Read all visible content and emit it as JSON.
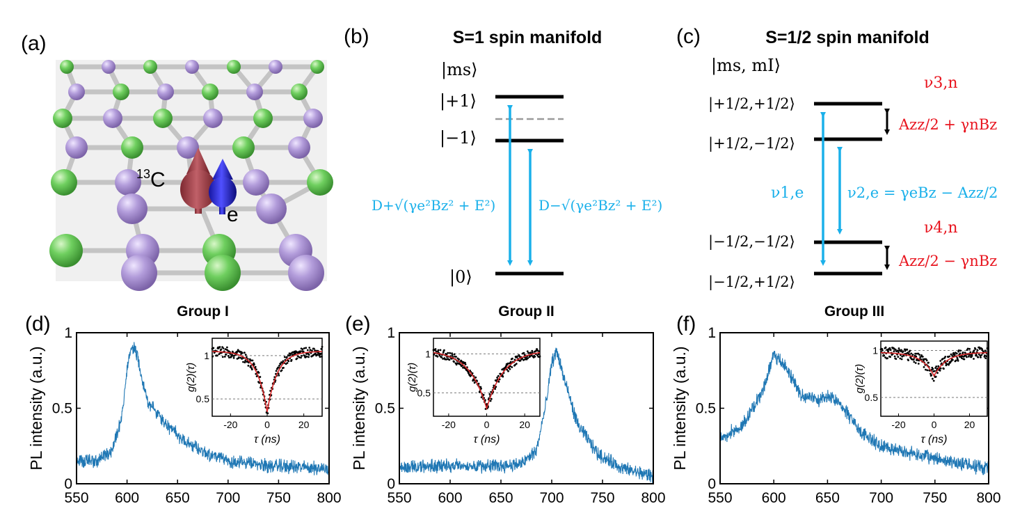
{
  "panels": {
    "a": {
      "label": "(a)",
      "atom_13c": "13C",
      "atom_13c_sup": "13",
      "atom_13c_base": "C",
      "electron": "e"
    },
    "b": {
      "label": "(b)",
      "title": "S=1 spin manifold",
      "basis": "|ms⟩",
      "levels": [
        "|+1⟩",
        "|−1⟩",
        "|0⟩"
      ],
      "transition_left": "D+√(γe²Bz² + E²)",
      "transition_right": "D−√(γe²Bz² + E²)"
    },
    "c": {
      "label": "(c)",
      "title": "S=1/2 spin manifold",
      "basis": "|ms, mI⟩",
      "levels": [
        "|+1/2,+1/2⟩",
        "|+1/2,−1/2⟩",
        "|−1/2,−1/2⟩",
        "|−1/2,+1/2⟩"
      ],
      "nu1": "ν1,e",
      "nu2": "ν2,e = γeBz − Azz/2",
      "nu3": "ν3,n",
      "nu4": "ν4,n",
      "split_top": "Azz/2 + γnBz",
      "split_bottom": "Azz/2 − γnBz"
    }
  },
  "colors": {
    "spectrum": "#1f77b4",
    "fit": "#d62728",
    "transition": "#1ab0ea",
    "label_red": "#e8141e",
    "green_atom": "#6fcf5f",
    "purple_atom": "#b39ddb"
  },
  "chart_data": [
    {
      "panel": "(d)",
      "type": "line",
      "title": "Group I",
      "xlabel": "",
      "ylabel": "PL intensity (a.u.)",
      "xlim": [
        550,
        800
      ],
      "ylim": [
        0,
        1
      ],
      "xticks": [
        550,
        600,
        650,
        700,
        750,
        800
      ],
      "yticks": [
        0,
        0.5,
        1
      ],
      "x": [
        550,
        570,
        585,
        595,
        600,
        605,
        610,
        620,
        640,
        660,
        680,
        700,
        740,
        800
      ],
      "y": [
        0.15,
        0.15,
        0.22,
        0.45,
        0.75,
        0.92,
        0.85,
        0.55,
        0.38,
        0.27,
        0.2,
        0.15,
        0.12,
        0.1
      ],
      "inset": {
        "type": "scatter",
        "xlabel": "τ (ns)",
        "ylabel": "g(2)(τ)",
        "xlim": [
          -30,
          30
        ],
        "ylim": [
          0.3,
          1.2
        ],
        "xticks": [
          -20,
          0,
          20
        ],
        "yticks": [
          0.5,
          1
        ],
        "fit": {
          "min": 0.35,
          "baseline": 1.05,
          "width_ns": 5.5
        }
      }
    },
    {
      "panel": "(e)",
      "type": "line",
      "title": "Group II",
      "xlabel": "",
      "ylabel": "PL intensity (a.u.)",
      "xlim": [
        550,
        800
      ],
      "ylim": [
        0,
        1
      ],
      "xticks": [
        550,
        600,
        650,
        700,
        750,
        800
      ],
      "yticks": [
        0,
        0.5,
        1
      ],
      "x": [
        550,
        600,
        650,
        670,
        685,
        695,
        700,
        705,
        712,
        725,
        745,
        770,
        800
      ],
      "y": [
        0.11,
        0.12,
        0.12,
        0.13,
        0.22,
        0.55,
        0.8,
        0.88,
        0.7,
        0.4,
        0.2,
        0.1,
        0.05
      ],
      "inset": {
        "type": "scatter",
        "xlabel": "τ (ns)",
        "ylabel": "g(2)(τ)",
        "xlim": [
          -28,
          28
        ],
        "ylim": [
          0.2,
          1.2
        ],
        "xticks": [
          -20,
          0,
          20
        ],
        "yticks": [
          0.5,
          1
        ],
        "fit": {
          "min": 0.3,
          "baseline": 1.05,
          "width_ns": 9
        }
      }
    },
    {
      "panel": "(f)",
      "type": "line",
      "title": "Group III",
      "xlabel": "",
      "ylabel": "PL intensity (a.u.)",
      "xlim": [
        550,
        800
      ],
      "ylim": [
        0,
        1
      ],
      "xticks": [
        550,
        600,
        650,
        700,
        750,
        800
      ],
      "yticks": [
        0,
        0.5,
        1
      ],
      "x": [
        550,
        570,
        590,
        600,
        610,
        625,
        640,
        655,
        665,
        680,
        700,
        740,
        800
      ],
      "y": [
        0.3,
        0.38,
        0.62,
        0.85,
        0.78,
        0.6,
        0.55,
        0.58,
        0.5,
        0.35,
        0.25,
        0.18,
        0.1
      ],
      "inset": {
        "type": "scatter",
        "xlabel": "τ (ns)",
        "ylabel": "g(2)(τ)",
        "xlim": [
          -30,
          30
        ],
        "ylim": [
          0.3,
          1.1
        ],
        "xticks": [
          -20,
          0,
          20
        ],
        "yticks": [
          0.5,
          1
        ],
        "fit": {
          "min": 0.73,
          "baseline": 0.98,
          "width_ns": 7
        }
      }
    }
  ]
}
